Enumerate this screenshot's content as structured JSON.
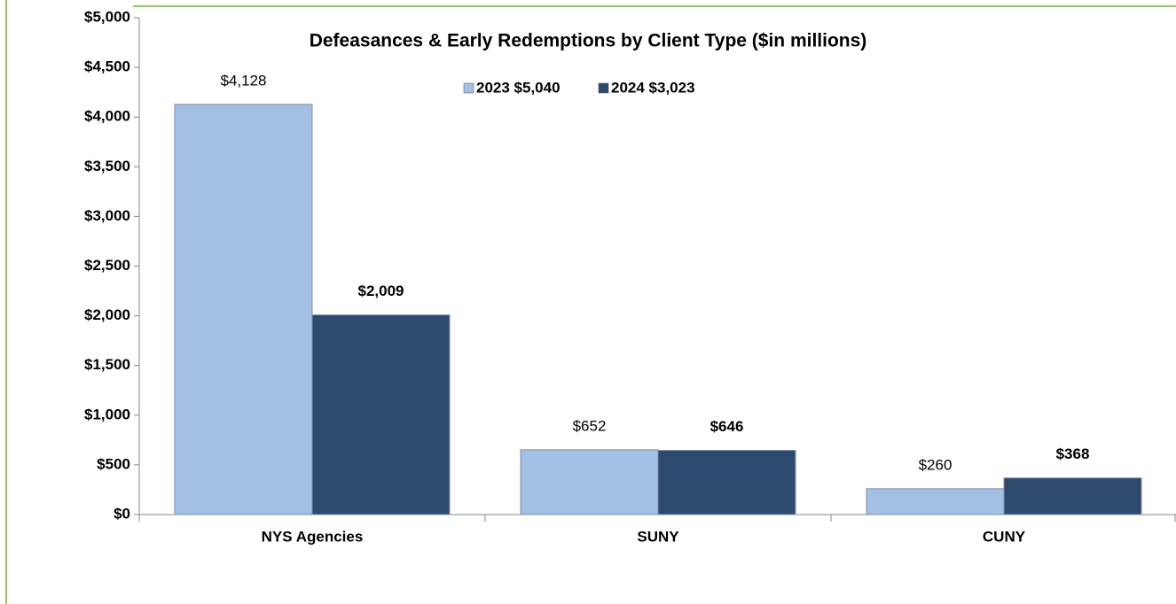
{
  "chart_data": {
    "type": "bar",
    "title": "Defeasances & Early Redemptions by Client Type ($in millions)",
    "categories": [
      "NYS Agencies",
      "SUNY",
      "CUNY"
    ],
    "series": [
      {
        "name": "2023 $5,040",
        "color": "#a3bfe4",
        "values": [
          4128,
          652,
          260
        ],
        "value_labels": [
          "$4,128",
          "$652",
          "$260"
        ]
      },
      {
        "name": "2024 $3,023",
        "color": "#2c4a6e",
        "values": [
          2009,
          646,
          368
        ],
        "value_labels": [
          "$2,009",
          "$646",
          "$368"
        ]
      }
    ],
    "ylim": [
      0,
      5000
    ],
    "yticks": [
      {
        "value": 0,
        "label": "$0"
      },
      {
        "value": 500,
        "label": "$500"
      },
      {
        "value": 1000,
        "label": "$1,000"
      },
      {
        "value": 1500,
        "label": "$1,500"
      },
      {
        "value": 2000,
        "label": "$2,000"
      },
      {
        "value": 2500,
        "label": "$2,500"
      },
      {
        "value": 3000,
        "label": "$3,000"
      },
      {
        "value": 3500,
        "label": "$3,500"
      },
      {
        "value": 4000,
        "label": "$4,000"
      },
      {
        "value": 4500,
        "label": "$4,500"
      },
      {
        "value": 5000,
        "label": "$5,000"
      }
    ],
    "grid": false
  }
}
